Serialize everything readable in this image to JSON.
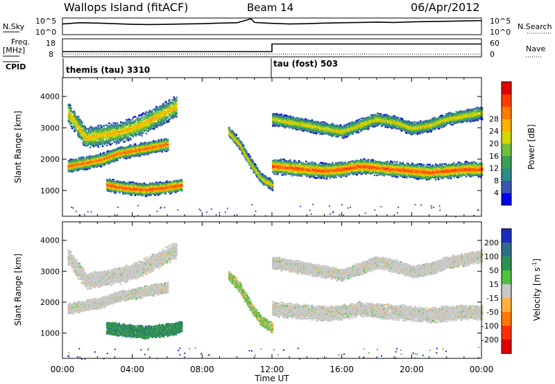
{
  "header": {
    "title": "Wallops Island (fitACF)",
    "beam": "Beam 14",
    "date": "06/Apr/2012"
  },
  "chart_data": [
    {
      "type": "line",
      "panel": "noise",
      "ylabel_left": "N.Sky",
      "ylabel_right": "N.Search",
      "left_ticks": [
        "10^5",
        "10^0"
      ],
      "right_ticks": [
        "10^5",
        "10^0"
      ],
      "series": [
        {
          "name": "N.Sky",
          "style": "solid",
          "x": [
            0,
            1,
            2,
            3,
            4,
            5,
            6,
            7,
            8,
            9,
            10,
            10.8,
            11,
            12,
            13,
            14,
            15,
            16,
            17,
            18,
            19,
            20,
            21,
            22,
            23,
            24
          ],
          "y_log10": [
            3.5,
            3.9,
            3.8,
            3.6,
            3.4,
            3.3,
            3.4,
            3.5,
            3.6,
            3.8,
            3.9,
            5.2,
            4.0,
            3.7,
            3.5,
            3.6,
            3.8,
            3.9,
            4.0,
            4.1,
            4.0,
            4.2,
            4.3,
            4.4,
            4.5,
            4.6
          ]
        }
      ]
    },
    {
      "type": "line",
      "panel": "frequency",
      "ylabel_left": "Freq.",
      "ylabel_left_unit": "[MHz]",
      "ylabel_right": "Nave",
      "left_ticks": [
        "18",
        "8"
      ],
      "right_ticks": [
        "60",
        "0"
      ],
      "series": [
        {
          "name": "Freq.",
          "style": "solid",
          "x": [
            0,
            12,
            12,
            24
          ],
          "y": [
            10.5,
            10.5,
            15.5,
            15.5
          ]
        },
        {
          "name": "Nave",
          "style": "dotted",
          "x": [
            0,
            24
          ],
          "y": [
            5,
            5
          ]
        }
      ]
    },
    {
      "type": "table",
      "panel": "cpid",
      "label": "CPID",
      "segments": [
        {
          "start": 0,
          "end": 12,
          "text": "themis (tau) 3310"
        },
        {
          "start": 12,
          "end": 24,
          "text": "tau (fost) 503"
        }
      ]
    },
    {
      "type": "heatmap",
      "panel": "power",
      "ylabel": "Slant Range [km]",
      "yticks": [
        1000,
        2000,
        3000,
        4000
      ],
      "ylim": [
        180,
        4600
      ],
      "xlim": [
        0,
        24
      ],
      "colorbar": {
        "label": "Power [dB]",
        "ticks": [
          "4",
          "8",
          "12",
          "16",
          "20",
          "24",
          "28"
        ],
        "colors": [
          "#0000ee",
          "#3a56b0",
          "#2e8b8b",
          "#3c9c58",
          "#6fbf3c",
          "#d4d800",
          "#ffb000",
          "#ff7a00",
          "#ff3c00",
          "#e00000"
        ]
      },
      "bands": [
        {
          "start": 0.3,
          "end": 6.5,
          "center": [
            3500,
            2700,
            2800,
            2900,
            3100,
            3400,
            3700
          ],
          "halfwidth": 250,
          "level": 0.6
        },
        {
          "start": 0.3,
          "end": 6.0,
          "center": [
            1800,
            1900,
            2000,
            2200,
            2300,
            2400,
            2500
          ],
          "halfwidth": 150,
          "level": 0.75
        },
        {
          "start": 2.5,
          "end": 6.8,
          "center": [
            1200,
            1100,
            1050,
            1100,
            1200
          ],
          "halfwidth": 150,
          "level": 0.8
        },
        {
          "start": 9.5,
          "end": 12.0,
          "center": [
            2900,
            2500,
            1900,
            1400,
            1200
          ],
          "halfwidth": 120,
          "level": 0.6
        },
        {
          "start": 12.0,
          "end": 24.0,
          "center": [
            3300,
            3200,
            3100,
            3000,
            2900,
            3100,
            3300,
            3200,
            3000,
            3100,
            3300,
            3400,
            3500
          ],
          "halfwidth": 150,
          "level": 0.55
        },
        {
          "start": 12.0,
          "end": 24.0,
          "center": [
            1800,
            1750,
            1700,
            1650,
            1700,
            1800,
            1750,
            1700,
            1650,
            1600,
            1650,
            1700,
            1700
          ],
          "halfwidth": 180,
          "level": 0.8
        }
      ]
    },
    {
      "type": "heatmap",
      "panel": "velocity",
      "ylabel": "Slant Range [km]",
      "yticks": [
        1000,
        2000,
        3000,
        4000
      ],
      "ylim": [
        180,
        4600
      ],
      "xlim": [
        0,
        24
      ],
      "xticks": [
        "00:00",
        "04:00",
        "08:00",
        "12:00",
        "16:00",
        "20:00",
        "00:00"
      ],
      "xlabel": "Time UT",
      "colorbar": {
        "label": "Velocity [m s^-1]",
        "ticks": [
          "200",
          "100",
          "50",
          "15",
          "-15",
          "-50",
          "-100",
          "-200"
        ],
        "colors": [
          "#1c2cbe",
          "#2d6e8a",
          "#2f8f50",
          "#4fc040",
          "#c8c8c8",
          "#ffb040",
          "#ff7800",
          "#ff3000",
          "#e00000"
        ]
      },
      "bands": [
        {
          "start": 0.3,
          "end": 6.5,
          "center": [
            3500,
            2700,
            2800,
            2900,
            3100,
            3400,
            3700
          ],
          "halfwidth": 200,
          "level": "ground"
        },
        {
          "start": 0.3,
          "end": 6.0,
          "center": [
            1800,
            1900,
            2000,
            2200,
            2300,
            2400,
            2500
          ],
          "halfwidth": 130,
          "level": "ground"
        },
        {
          "start": 2.5,
          "end": 6.8,
          "center": [
            1200,
            1100,
            1050,
            1100,
            1200
          ],
          "halfwidth": 150,
          "level": "positive"
        },
        {
          "start": 9.5,
          "end": 12.0,
          "center": [
            2900,
            2500,
            1900,
            1400,
            1200
          ],
          "halfwidth": 120,
          "level": "mixed"
        },
        {
          "start": 12.0,
          "end": 24.0,
          "center": [
            3300,
            3200,
            3100,
            3000,
            2900,
            3100,
            3300,
            3200,
            3000,
            3100,
            3300,
            3400,
            3500
          ],
          "halfwidth": 150,
          "level": "ground"
        },
        {
          "start": 12.0,
          "end": 24.0,
          "center": [
            1800,
            1750,
            1700,
            1650,
            1700,
            1800,
            1750,
            1700,
            1650,
            1600,
            1650,
            1700,
            1700
          ],
          "halfwidth": 180,
          "level": "ground"
        }
      ]
    }
  ]
}
